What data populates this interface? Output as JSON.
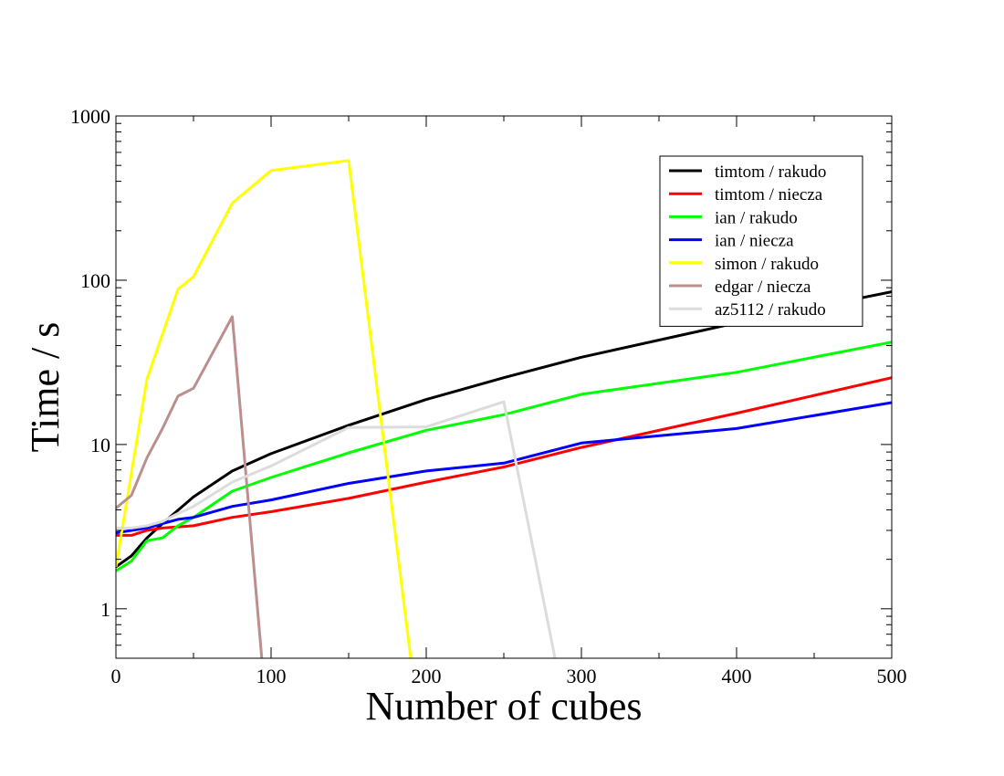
{
  "chart_data": {
    "type": "line",
    "title": "",
    "xlabel": "Number of cubes",
    "ylabel": "Time / s",
    "xlim": [
      0,
      500
    ],
    "ylim": [
      0.5,
      1000
    ],
    "yscale": "log",
    "grid": false,
    "legend_position": "top-right",
    "xticks": [
      0,
      100,
      200,
      300,
      400,
      500
    ],
    "xtick_labels": [
      "0",
      "100",
      "200",
      "300",
      "400",
      "500"
    ],
    "yticks": [
      1,
      10,
      100,
      1000
    ],
    "ytick_labels": [
      "1",
      "10",
      "100",
      "1000"
    ],
    "series": [
      {
        "name": "timtom / rakudo",
        "color": "#000000",
        "x": [
          0,
          10,
          20,
          30,
          50,
          75,
          100,
          150,
          200,
          250,
          300,
          400,
          500
        ],
        "y": [
          1.8,
          2.1,
          2.7,
          3.3,
          4.8,
          6.9,
          8.8,
          13.1,
          18.8,
          25.5,
          34.0,
          55.0,
          85.0
        ]
      },
      {
        "name": "timtom / niecza",
        "color": "#ff0000",
        "x": [
          0,
          10,
          20,
          30,
          50,
          75,
          100,
          150,
          200,
          250,
          300,
          400,
          500
        ],
        "y": [
          2.8,
          2.8,
          3.0,
          3.1,
          3.2,
          3.6,
          3.9,
          4.7,
          5.9,
          7.3,
          9.6,
          15.5,
          25.5
        ]
      },
      {
        "name": "ian / rakudo",
        "color": "#00ff00",
        "x": [
          0,
          10,
          20,
          30,
          40,
          50,
          75,
          100,
          150,
          200,
          250,
          300,
          400,
          500
        ],
        "y": [
          1.7,
          1.95,
          2.6,
          2.7,
          3.2,
          3.6,
          5.2,
          6.3,
          8.9,
          12.2,
          15.2,
          20.2,
          27.5,
          42.0
        ]
      },
      {
        "name": "ian / niecza",
        "color": "#0000ff",
        "x": [
          0,
          10,
          20,
          30,
          40,
          50,
          75,
          100,
          150,
          200,
          250,
          300,
          400,
          500
        ],
        "y": [
          2.9,
          3.0,
          3.1,
          3.3,
          3.5,
          3.6,
          4.2,
          4.6,
          5.8,
          6.9,
          7.7,
          10.2,
          12.5,
          18.0
        ]
      },
      {
        "name": "simon / rakudo",
        "color": "#ffff00",
        "x": [
          0,
          20,
          40,
          50,
          75,
          100,
          150,
          190
        ],
        "y": [
          1.8,
          25.0,
          88.0,
          105.0,
          295.0,
          465.0,
          535.0,
          0.5
        ]
      },
      {
        "name": "edgar / niecza",
        "color": "#bc8f8f",
        "x": [
          0,
          10,
          20,
          30,
          40,
          50,
          75,
          94
        ],
        "y": [
          4.1,
          4.9,
          8.3,
          12.5,
          19.7,
          22.0,
          60.0,
          0.5
        ]
      },
      {
        "name": "az5112 / rakudo",
        "color": "#dcdcdc",
        "x": [
          0,
          10,
          20,
          30,
          40,
          50,
          75,
          100,
          150,
          200,
          250,
          283
        ],
        "y": [
          3.1,
          3.1,
          3.2,
          3.4,
          3.8,
          4.2,
          5.9,
          7.4,
          12.7,
          12.8,
          18.2,
          0.5
        ]
      }
    ]
  }
}
